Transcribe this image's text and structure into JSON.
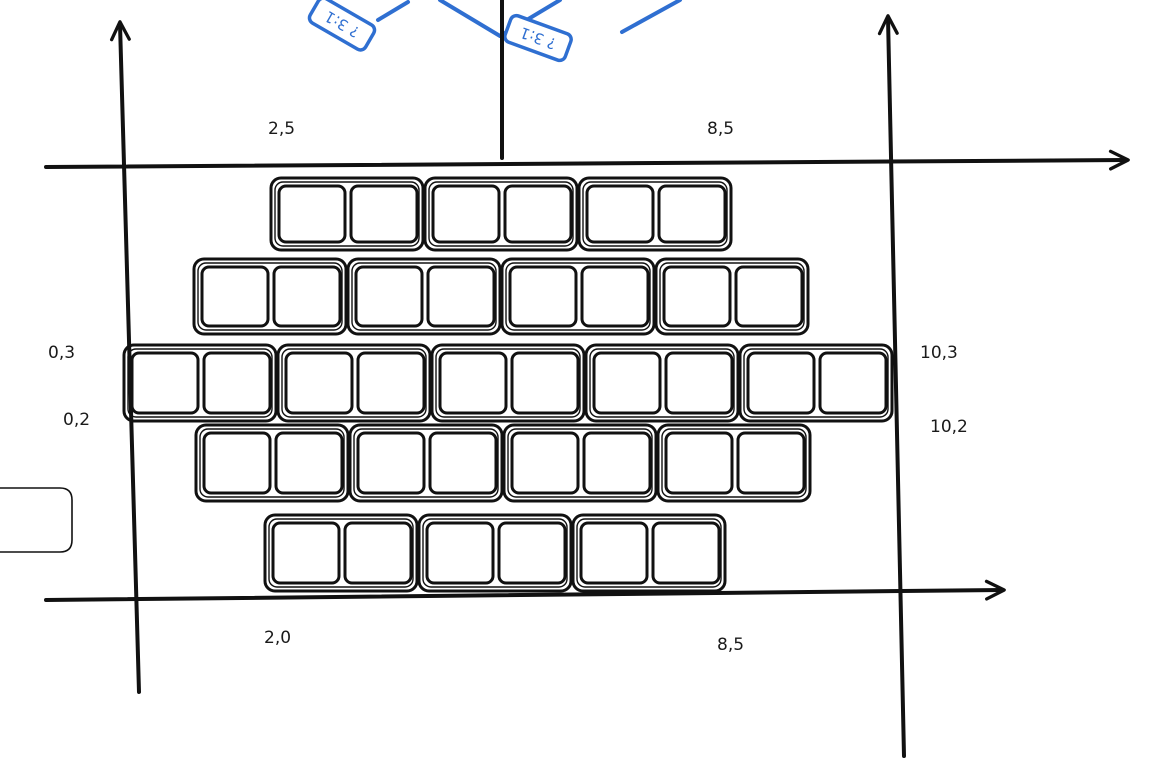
{
  "colors": {
    "ink": "#111111",
    "blue": "#2f6fd1",
    "paper": "#ffffff"
  },
  "labels": {
    "top_left": "2,5",
    "top_right": "8,5",
    "left_upper": "0,3",
    "left_lower": "0,2",
    "right_upper": "10,3",
    "right_lower": "10,2",
    "bottom_left": "2,0",
    "bottom_right": "8,5"
  },
  "blue_tags": [
    "? 3:1",
    "? 3:1"
  ],
  "layout": {
    "rows": [
      {
        "row": 1,
        "units": 3
      },
      {
        "row": 2,
        "units": 4
      },
      {
        "row": 3,
        "units": 5
      },
      {
        "row": 4,
        "units": 4
      },
      {
        "row": 5,
        "units": 3
      }
    ],
    "cells_per_unit": 2
  }
}
